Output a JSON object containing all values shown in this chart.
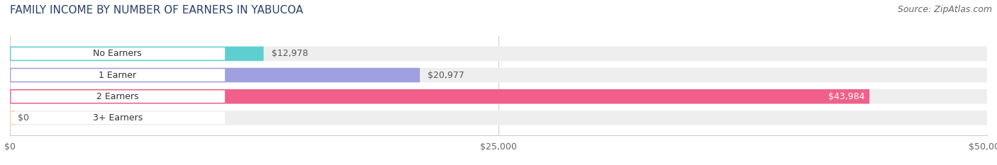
{
  "title": "FAMILY INCOME BY NUMBER OF EARNERS IN YABUCOA",
  "source": "Source: ZipAtlas.com",
  "categories": [
    "No Earners",
    "1 Earner",
    "2 Earners",
    "3+ Earners"
  ],
  "values": [
    12978,
    20977,
    43984,
    0
  ],
  "bar_colors": [
    "#5ecfcf",
    "#a0a0e0",
    "#f0608a",
    "#f5d5a8"
  ],
  "xlim": [
    0,
    50000
  ],
  "xticks": [
    0,
    25000,
    50000
  ],
  "xtick_labels": [
    "$0",
    "$25,000",
    "$50,000"
  ],
  "bg_color": "#ffffff",
  "bar_bg_color": "#eeeeee",
  "title_fontsize": 11,
  "source_fontsize": 9,
  "label_fontsize": 9,
  "tick_fontsize": 9,
  "value_label_threshold": 0.55
}
